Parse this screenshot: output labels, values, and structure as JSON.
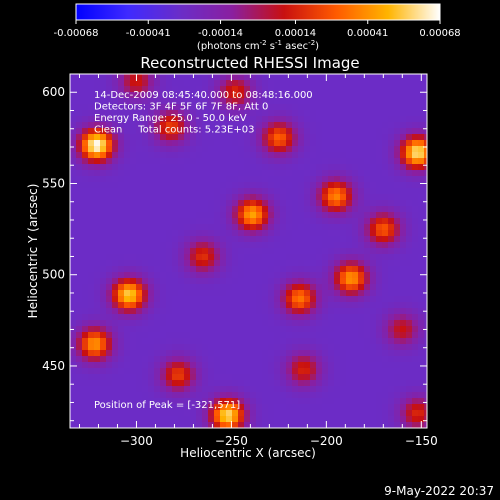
{
  "chart_data": {
    "type": "heatmap",
    "title": "Reconstructed RHESSI Image",
    "xlabel": "Heliocentric X (arcsec)",
    "ylabel": "Heliocentric Y (arcsec)",
    "xlim": [
      -335,
      -147
    ],
    "ylim": [
      416,
      610
    ],
    "x_ticks": [
      -300,
      -250,
      -200,
      -150
    ],
    "y_ticks": [
      450,
      500,
      550,
      600
    ],
    "colorbar": {
      "range": [
        -0.00068,
        0.00068
      ],
      "ticks": [
        "-0.00068",
        "-0.00041",
        "-0.00014",
        "0.00014",
        "0.00041",
        "0.00068"
      ],
      "tick_values": [
        -0.00068,
        -0.00041,
        -0.00014,
        0.00014,
        0.00041,
        0.00068
      ],
      "unit_prefix": "(photons cm",
      "unit_exp1": "-2",
      "unit_mid": " s",
      "unit_exp2": "-1",
      "unit_mid2": " asec",
      "unit_exp3": "-2",
      "unit_suffix": ")",
      "colors": [
        "#0000ff",
        "#3f2aff",
        "#6a2dc8",
        "#8a1fa0",
        "#c81010",
        "#ff5a00",
        "#ffb400",
        "#ffffff"
      ]
    },
    "annotations": [
      "14-Dec-2009 08:45:40.000 to 08:48:16.000",
      "Detectors: 3F 4F 5F 6F 7F 8F, Att 0",
      "Energy Range: 25.0 - 50.0 keV",
      "Clean     Total counts: 5.23E+03"
    ],
    "peak_label": "Position of Peak = [-321,571]",
    "peak": [
      -321,
      571
    ],
    "bright_sources": [
      {
        "x": -321,
        "y": 571,
        "value": 0.00068
      },
      {
        "x": -152,
        "y": 567,
        "value": 0.0006
      },
      {
        "x": -304,
        "y": 489,
        "value": 0.00055
      },
      {
        "x": -322,
        "y": 462,
        "value": 0.00042
      },
      {
        "x": -252,
        "y": 423,
        "value": 0.00058
      },
      {
        "x": -239,
        "y": 533,
        "value": 0.00045
      },
      {
        "x": -195,
        "y": 543,
        "value": 0.00038
      },
      {
        "x": -187,
        "y": 498,
        "value": 0.00042
      },
      {
        "x": -214,
        "y": 487,
        "value": 0.00035
      },
      {
        "x": -170,
        "y": 525,
        "value": 0.00028
      },
      {
        "x": -225,
        "y": 575,
        "value": 0.0003
      },
      {
        "x": -265,
        "y": 510,
        "value": 0.00018
      },
      {
        "x": -282,
        "y": 581,
        "value": 0.00022
      },
      {
        "x": -278,
        "y": 445,
        "value": 0.00022
      },
      {
        "x": -212,
        "y": 448,
        "value": 0.00015
      },
      {
        "x": -160,
        "y": 470,
        "value": 0.0001
      },
      {
        "x": -152,
        "y": 424,
        "value": 0.00016
      },
      {
        "x": -300,
        "y": 606,
        "value": 0.00012
      },
      {
        "x": -248,
        "y": 600,
        "value": 0.00016
      }
    ]
  },
  "footer": {
    "timestamp": "9-May-2022 20:37"
  }
}
